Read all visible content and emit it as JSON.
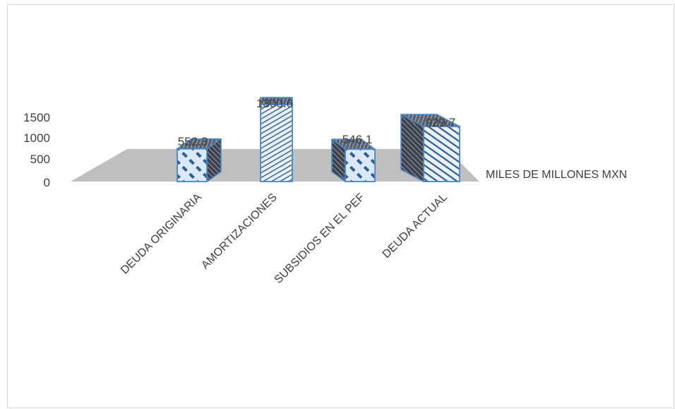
{
  "chart_data": {
    "type": "bar",
    "categories": [
      "DEUDA ORIGINARIA",
      "AMORTIZACIONES",
      "SUBSIDIOS EN EL PEF",
      "DEUDA ACTUAL"
    ],
    "series": [
      {
        "name": "MILES DE MILLONES MXN",
        "values": [
          552.3,
          1300.6,
          546.1,
          929.7
        ]
      }
    ],
    "yticks": [
      "1500",
      "1000",
      "500",
      "0"
    ],
    "ylim": [
      0,
      1500
    ],
    "grid": false,
    "bar_colors": {
      "front": "#dbe8f7",
      "stripe": "#2e5e93",
      "side": "#3a3f4a",
      "top": "#5a6373",
      "edge": "#4a86c8"
    },
    "floor_color": "#bfbfbf"
  }
}
